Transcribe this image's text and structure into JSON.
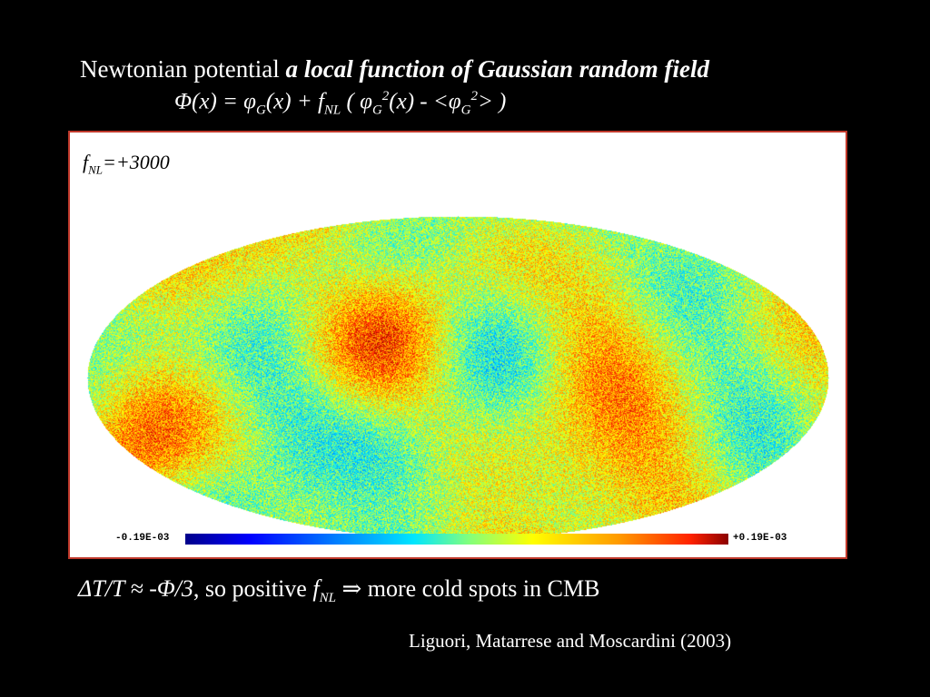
{
  "slide": {
    "title_plain": "Newtonian potential ",
    "title_emph": "a local function of Gaussian random field",
    "formula": {
      "lhs_phi": "Φ",
      "lhs_arg": "(x) = ",
      "phi_g": "φ",
      "sub_g": "G",
      "arg2": "(x) + ",
      "f": "f",
      "sub_nl": "NL",
      "open": " ( ",
      "phi_g2": "φ",
      "sub_g2": "G",
      "sup_2": "2",
      "arg3": "(x) - <",
      "phi_g3": "φ",
      "sub_g3": "G",
      "sup_2b": "2",
      "close": "> )"
    },
    "map": {
      "fnl_f": "f",
      "fnl_sub": "NL",
      "fnl_value": "=+3000",
      "colorbar_min": "-0.19E-03",
      "colorbar_max": "+0.19E-03",
      "colormap": [
        "#00008b",
        "#0000ff",
        "#0080ff",
        "#00e5ff",
        "#7fff7f",
        "#ffff00",
        "#ff9900",
        "#ff2200",
        "#8b0000"
      ]
    },
    "statement": {
      "dt": "ΔT/T ",
      "approx": "≈ -Φ/3",
      "mid": ", so positive ",
      "f": "f",
      "sub_nl": "NL",
      "implies": " ⇒ ",
      "tail": "more cold spots in CMB"
    },
    "citation": "Liguori, Matarrese and  Moscardini (2003)"
  }
}
